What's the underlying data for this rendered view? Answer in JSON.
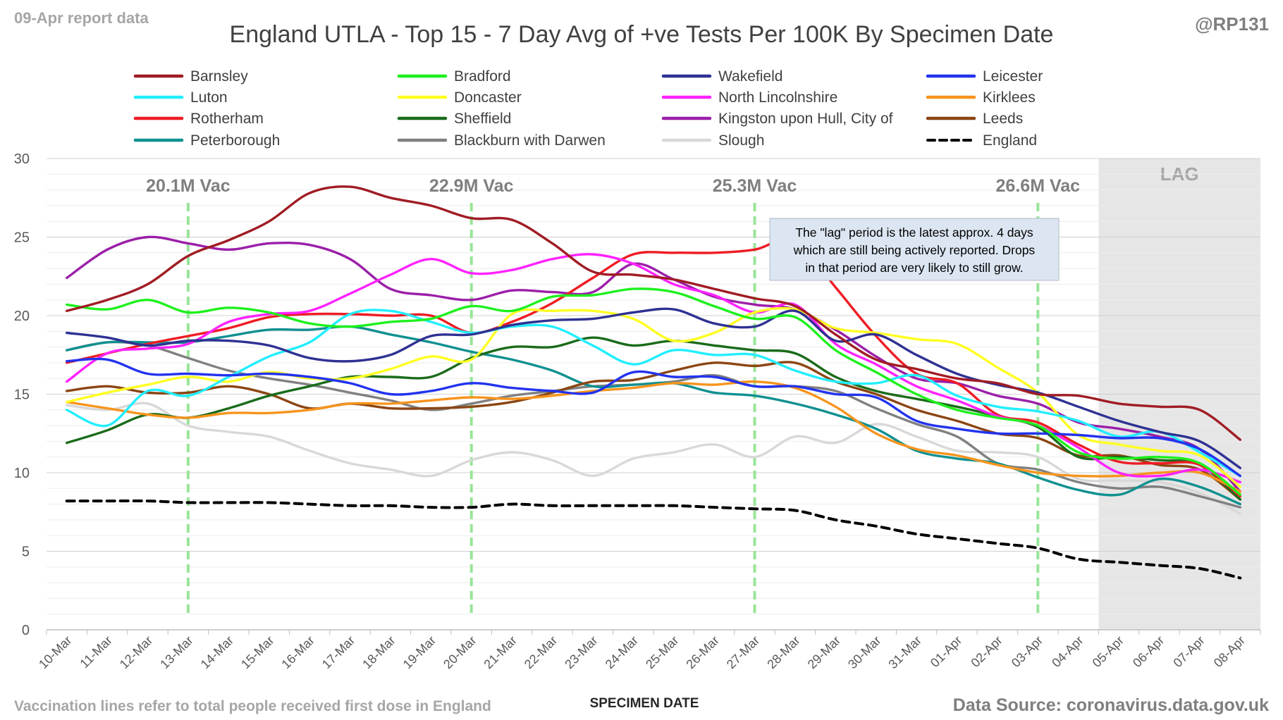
{
  "header": {
    "report_date": "09-Apr report data",
    "handle": "@RP131",
    "title": "England UTLA - Top 15 - 7 Day Avg of +ve Tests Per 100K By Specimen Date"
  },
  "footer": {
    "note": "Vaccination lines refer to total people received first dose in England",
    "source": "Data Source: coronavirus.data.gov.uk"
  },
  "chart_data": {
    "type": "line",
    "title": "England UTLA - Top 15 - 7 Day Avg of +ve Tests Per 100K By Specimen Date",
    "xlabel": "SPECIMEN DATE",
    "ylabel": "",
    "ylim": [
      0,
      30
    ],
    "yticks": [
      0,
      5,
      10,
      15,
      20,
      25,
      30
    ],
    "grid": true,
    "legend_position": "top",
    "categories": [
      "10-Mar",
      "11-Mar",
      "12-Mar",
      "13-Mar",
      "14-Mar",
      "15-Mar",
      "16-Mar",
      "17-Mar",
      "18-Mar",
      "19-Mar",
      "20-Mar",
      "21-Mar",
      "22-Mar",
      "23-Mar",
      "24-Mar",
      "25-Mar",
      "26-Mar",
      "27-Mar",
      "28-Mar",
      "29-Mar",
      "30-Mar",
      "31-Mar",
      "01-Apr",
      "02-Apr",
      "03-Apr",
      "04-Apr",
      "05-Apr",
      "06-Apr",
      "07-Apr",
      "08-Apr"
    ],
    "vaccination_lines": [
      {
        "date": "13-Mar",
        "label": "20.1M Vac"
      },
      {
        "date": "20-Mar",
        "label": "22.9M Vac"
      },
      {
        "date": "27-Mar",
        "label": "25.3M Vac"
      },
      {
        "date": "03-Apr",
        "label": "26.6M Vac"
      }
    ],
    "lag_region": {
      "from": "05-Apr",
      "to": "08-Apr",
      "label": "LAG"
    },
    "annotation": "The \"lag\" period is the latest approx. 4 days which are still being actively reported. Drops in that period are very likely to still grow.",
    "series": [
      {
        "name": "Barnsley",
        "color": "#A01C24",
        "dashed": false,
        "values": [
          20.3,
          21.0,
          22.0,
          23.8,
          24.8,
          26.0,
          27.8,
          28.2,
          27.5,
          27.0,
          26.2,
          26.1,
          24.6,
          22.8,
          22.6,
          22.3,
          21.7,
          21.1,
          20.6,
          18.8,
          17.2,
          16.6,
          16.0,
          15.7,
          15.0,
          14.9,
          14.4,
          14.2,
          14.0,
          12.1
        ]
      },
      {
        "name": "Bradford",
        "color": "#1EF01E",
        "dashed": false,
        "values": [
          20.7,
          20.4,
          21.0,
          20.2,
          20.5,
          20.2,
          19.5,
          19.3,
          19.6,
          19.8,
          20.6,
          20.3,
          21.2,
          21.3,
          21.7,
          21.5,
          20.6,
          19.8,
          19.9,
          17.8,
          16.4,
          15.0,
          14.0,
          13.5,
          13.0,
          11.3,
          10.9,
          11.0,
          10.6,
          8.6
        ]
      },
      {
        "name": "Wakefield",
        "color": "#2E3192",
        "dashed": false,
        "values": [
          18.9,
          18.6,
          18.1,
          18.4,
          18.4,
          18.1,
          17.3,
          17.1,
          17.5,
          18.7,
          18.8,
          19.4,
          19.7,
          19.8,
          20.2,
          20.4,
          19.5,
          19.3,
          20.3,
          18.4,
          18.8,
          17.5,
          16.3,
          15.6,
          15.1,
          14.2,
          13.3,
          12.6,
          12.0,
          10.3
        ]
      },
      {
        "name": "Leicester",
        "color": "#2233EE",
        "dashed": false,
        "values": [
          17.1,
          17.2,
          16.3,
          16.3,
          16.2,
          16.3,
          16.1,
          15.7,
          15.0,
          15.2,
          15.7,
          15.4,
          15.2,
          15.1,
          16.4,
          16.1,
          16.1,
          15.5,
          15.5,
          15.0,
          14.8,
          13.3,
          12.8,
          12.5,
          12.5,
          12.4,
          12.2,
          12.2,
          11.5,
          9.8
        ]
      },
      {
        "name": "Luton",
        "color": "#22EEFF",
        "dashed": false,
        "values": [
          14.0,
          13.0,
          15.2,
          14.9,
          16.1,
          17.4,
          18.3,
          20.1,
          20.3,
          19.6,
          18.9,
          19.3,
          19.3,
          18.1,
          16.9,
          17.8,
          17.5,
          17.5,
          16.5,
          15.8,
          15.7,
          16.2,
          14.9,
          14.2,
          13.9,
          13.3,
          12.3,
          12.6,
          11.3,
          9.8
        ]
      },
      {
        "name": "Doncaster",
        "color": "#FFFF22",
        "dashed": false,
        "values": [
          14.5,
          15.1,
          15.6,
          16.1,
          15.8,
          16.4,
          16.0,
          16.0,
          16.6,
          17.4,
          17.2,
          20.1,
          20.3,
          20.3,
          19.8,
          18.4,
          18.9,
          20.2,
          20.4,
          19.2,
          18.9,
          18.5,
          18.2,
          16.7,
          15.1,
          12.4,
          11.8,
          11.4,
          11.1,
          9.1
        ]
      },
      {
        "name": "North Lincolnshire",
        "color": "#FF22FF",
        "dashed": false,
        "values": [
          15.8,
          17.6,
          17.9,
          18.2,
          19.6,
          20.1,
          20.3,
          21.4,
          22.6,
          23.6,
          22.7,
          22.9,
          23.6,
          23.9,
          23.3,
          22.0,
          21.3,
          20.2,
          20.7,
          18.2,
          16.9,
          15.5,
          14.6,
          13.6,
          13.0,
          11.6,
          10.0,
          9.8,
          10.2,
          9.4
        ]
      },
      {
        "name": "Kirklees",
        "color": "#F7941D",
        "dashed": false,
        "values": [
          14.5,
          14.1,
          13.7,
          13.5,
          13.8,
          13.8,
          14.0,
          14.4,
          14.4,
          14.6,
          14.8,
          14.7,
          14.9,
          15.2,
          15.4,
          15.7,
          15.6,
          15.8,
          15.4,
          14.2,
          12.5,
          11.5,
          11.1,
          10.5,
          10.0,
          9.8,
          9.8,
          10.0,
          10.0,
          8.8
        ]
      },
      {
        "name": "Rotherham",
        "color": "#EE1C24",
        "dashed": false,
        "values": [
          17.0,
          17.6,
          18.2,
          18.7,
          19.2,
          19.9,
          20.1,
          20.1,
          20.0,
          20.0,
          18.9,
          19.6,
          20.8,
          22.4,
          23.9,
          24.0,
          24.0,
          24.2,
          24.8,
          21.8,
          18.7,
          16.3,
          15.7,
          13.7,
          13.2,
          11.8,
          10.7,
          10.6,
          10.5,
          8.5
        ]
      },
      {
        "name": "Sheffield",
        "color": "#1A6B1A",
        "dashed": false,
        "values": [
          11.9,
          12.7,
          13.7,
          13.5,
          14.1,
          14.9,
          15.5,
          16.1,
          16.1,
          16.1,
          17.3,
          18.0,
          18.0,
          18.6,
          18.1,
          18.4,
          18.1,
          17.8,
          17.6,
          16.1,
          15.2,
          14.7,
          14.2,
          13.6,
          12.9,
          11.0,
          11.0,
          10.8,
          10.5,
          8.3
        ]
      },
      {
        "name": "Kingston upon Hull, City of",
        "color": "#9B1FA8",
        "dashed": false,
        "values": [
          22.4,
          24.2,
          25.0,
          24.6,
          24.2,
          24.6,
          24.5,
          23.6,
          21.7,
          21.3,
          21.0,
          21.6,
          21.5,
          21.5,
          23.3,
          22.3,
          21.2,
          20.7,
          20.4,
          19.1,
          17.4,
          16.0,
          15.7,
          14.9,
          14.4,
          13.2,
          12.8,
          12.3,
          11.5,
          8.8
        ]
      },
      {
        "name": "Leeds",
        "color": "#8B4513",
        "dashed": false,
        "values": [
          15.2,
          15.5,
          15.1,
          15.1,
          15.5,
          15.0,
          14.1,
          14.4,
          14.1,
          14.1,
          14.2,
          14.5,
          15.1,
          15.8,
          15.9,
          16.5,
          17.0,
          16.8,
          17.0,
          15.8,
          15.0,
          14.0,
          13.3,
          12.5,
          12.2,
          11.1,
          11.1,
          10.5,
          10.2,
          8.3
        ]
      },
      {
        "name": "Peterborough",
        "color": "#109090",
        "dashed": false,
        "values": [
          17.8,
          18.3,
          18.3,
          18.3,
          18.7,
          19.1,
          19.1,
          19.3,
          18.8,
          18.3,
          17.7,
          17.2,
          16.5,
          15.5,
          15.6,
          15.7,
          15.1,
          14.9,
          14.4,
          13.7,
          12.8,
          11.4,
          10.9,
          10.6,
          9.7,
          8.9,
          8.6,
          9.6,
          9.1,
          8.0
        ]
      },
      {
        "name": "Blackburn with Darwen",
        "color": "#808080",
        "dashed": false,
        "values": [
          17.8,
          18.3,
          18.1,
          17.3,
          16.5,
          16.0,
          15.6,
          15.1,
          14.6,
          14.0,
          14.4,
          14.9,
          15.2,
          15.5,
          15.6,
          15.8,
          16.2,
          15.5,
          15.5,
          15.2,
          14.1,
          13.1,
          12.3,
          10.6,
          10.2,
          9.4,
          9.0,
          9.1,
          8.5,
          7.8
        ]
      },
      {
        "name": "Slough",
        "color": "#D8D8D8",
        "dashed": false,
        "values": [
          14.3,
          14.0,
          14.4,
          13.0,
          12.6,
          12.3,
          11.4,
          10.6,
          10.2,
          9.8,
          10.8,
          11.3,
          10.8,
          9.8,
          10.9,
          11.3,
          11.8,
          11.0,
          12.3,
          11.9,
          13.1,
          12.3,
          11.4,
          11.3,
          11.0,
          9.6,
          9.5,
          9.4,
          8.7,
          7.4
        ]
      },
      {
        "name": "England",
        "color": "#000000",
        "dashed": true,
        "values": [
          8.2,
          8.2,
          8.2,
          8.1,
          8.1,
          8.1,
          8.0,
          7.9,
          7.9,
          7.8,
          7.8,
          8.0,
          7.9,
          7.9,
          7.9,
          7.9,
          7.8,
          7.7,
          7.6,
          7.0,
          6.6,
          6.1,
          5.8,
          5.5,
          5.2,
          4.5,
          4.3,
          4.1,
          3.9,
          3.3
        ]
      }
    ]
  }
}
